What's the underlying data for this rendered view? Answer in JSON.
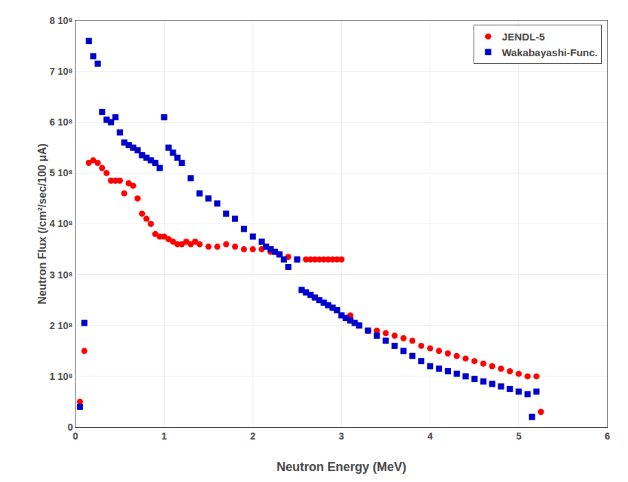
{
  "chart_data": {
    "type": "scatter",
    "xlabel": "Neutron Energy (MeV)",
    "ylabel": "Neutron Flux (/cm²/sec/100 μA)",
    "xlim": [
      0,
      6
    ],
    "ylim": [
      0,
      800000000.0
    ],
    "xticks": [
      0,
      1,
      2,
      3,
      4,
      5,
      6
    ],
    "yticks": [
      0,
      {
        "value": 100000000.0,
        "label": "1 10⁸"
      },
      {
        "value": 200000000.0,
        "label": "2 10⁸"
      },
      {
        "value": 300000000.0,
        "label": "3 10⁸"
      },
      {
        "value": 400000000.0,
        "label": "4 10⁸"
      },
      {
        "value": 500000000.0,
        "label": "5 10⁸"
      },
      {
        "value": 600000000.0,
        "label": "6 10⁸"
      },
      {
        "value": 700000000.0,
        "label": "7 10⁸"
      },
      {
        "value": 800000000.0,
        "label": "8 10⁸"
      }
    ],
    "grid": true,
    "legend": "upper right",
    "series": [
      {
        "name": "JENDL-5",
        "color": "#FF0000",
        "marker": "circle",
        "x": [
          0.05,
          0.1,
          0.15,
          0.2,
          0.25,
          0.3,
          0.35,
          0.4,
          0.45,
          0.5,
          0.55,
          0.6,
          0.65,
          0.7,
          0.75,
          0.8,
          0.85,
          0.9,
          0.95,
          1.0,
          1.05,
          1.1,
          1.15,
          1.2,
          1.25,
          1.3,
          1.35,
          1.4,
          1.5,
          1.6,
          1.7,
          1.8,
          1.9,
          2.0,
          2.1,
          2.2,
          2.3,
          2.4,
          2.5,
          2.6,
          2.65,
          2.7,
          2.75,
          2.8,
          2.85,
          2.9,
          2.95,
          3.0,
          3.1,
          3.2,
          3.3,
          3.4,
          3.5,
          3.6,
          3.7,
          3.8,
          3.9,
          4.0,
          4.1,
          4.2,
          4.3,
          4.4,
          4.5,
          4.6,
          4.7,
          4.8,
          4.9,
          5.0,
          5.1,
          5.2,
          5.25
        ],
        "values": [
          50000000.0,
          150000000.0,
          520000000.0,
          525000000.0,
          520000000.0,
          510000000.0,
          500000000.0,
          485000000.0,
          485000000.0,
          485000000.0,
          460000000.0,
          480000000.0,
          475000000.0,
          450000000.0,
          420000000.0,
          410000000.0,
          400000000.0,
          380000000.0,
          375000000.0,
          375000000.0,
          370000000.0,
          365000000.0,
          360000000.0,
          360000000.0,
          365000000.0,
          360000000.0,
          365000000.0,
          360000000.0,
          355000000.0,
          355000000.0,
          360000000.0,
          355000000.0,
          350000000.0,
          350000000.0,
          350000000.0,
          345000000.0,
          340000000.0,
          335000000.0,
          330000000.0,
          330000000.0,
          330000000.0,
          330000000.0,
          330000000.0,
          330000000.0,
          330000000.0,
          330000000.0,
          330000000.0,
          330000000.0,
          220000000.0,
          200000000.0,
          190000000.0,
          190000000.0,
          185000000.0,
          180000000.0,
          175000000.0,
          170000000.0,
          160000000.0,
          155000000.0,
          150000000.0,
          145000000.0,
          140000000.0,
          135000000.0,
          130000000.0,
          125000000.0,
          120000000.0,
          115000000.0,
          110000000.0,
          105000000.0,
          100000000.0,
          100000000.0,
          30000000.0
        ]
      },
      {
        "name": "Wakabayashi-Func.",
        "color": "#0000CC",
        "marker": "square",
        "x": [
          0.05,
          0.1,
          0.15,
          0.2,
          0.25,
          0.3,
          0.35,
          0.4,
          0.45,
          0.5,
          0.55,
          0.6,
          0.65,
          0.7,
          0.75,
          0.8,
          0.85,
          0.9,
          0.95,
          1.0,
          1.05,
          1.1,
          1.15,
          1.2,
          1.3,
          1.4,
          1.5,
          1.6,
          1.7,
          1.8,
          1.9,
          2.0,
          2.1,
          2.15,
          2.2,
          2.25,
          2.3,
          2.35,
          2.4,
          2.5,
          2.55,
          2.6,
          2.65,
          2.7,
          2.75,
          2.8,
          2.85,
          2.9,
          2.95,
          3.0,
          3.05,
          3.1,
          3.15,
          3.2,
          3.3,
          3.4,
          3.5,
          3.6,
          3.7,
          3.8,
          3.9,
          4.0,
          4.1,
          4.2,
          4.3,
          4.4,
          4.5,
          4.6,
          4.7,
          4.8,
          4.9,
          5.0,
          5.1,
          5.15,
          5.2
        ],
        "values": [
          40000000.0,
          205000000.0,
          760000000.0,
          730000000.0,
          715000000.0,
          620000000.0,
          605000000.0,
          600000000.0,
          610000000.0,
          580000000.0,
          560000000.0,
          555000000.0,
          550000000.0,
          545000000.0,
          535000000.0,
          530000000.0,
          525000000.0,
          520000000.0,
          510000000.0,
          610000000.0,
          550000000.0,
          540000000.0,
          530000000.0,
          520000000.0,
          490000000.0,
          460000000.0,
          450000000.0,
          440000000.0,
          420000000.0,
          410000000.0,
          390000000.0,
          375000000.0,
          365000000.0,
          355000000.0,
          350000000.0,
          345000000.0,
          340000000.0,
          330000000.0,
          315000000.0,
          330000000.0,
          270000000.0,
          265000000.0,
          260000000.0,
          255000000.0,
          250000000.0,
          245000000.0,
          240000000.0,
          235000000.0,
          230000000.0,
          220000000.0,
          215000000.0,
          210000000.0,
          205000000.0,
          200000000.0,
          190000000.0,
          180000000.0,
          170000000.0,
          160000000.0,
          150000000.0,
          140000000.0,
          130000000.0,
          120000000.0,
          115000000.0,
          110000000.0,
          105000000.0,
          100000000.0,
          95000000.0,
          90000000.0,
          85000000.0,
          80000000.0,
          75000000.0,
          70000000.0,
          65000000.0,
          20000000.0,
          70000000.0
        ]
      }
    ]
  }
}
